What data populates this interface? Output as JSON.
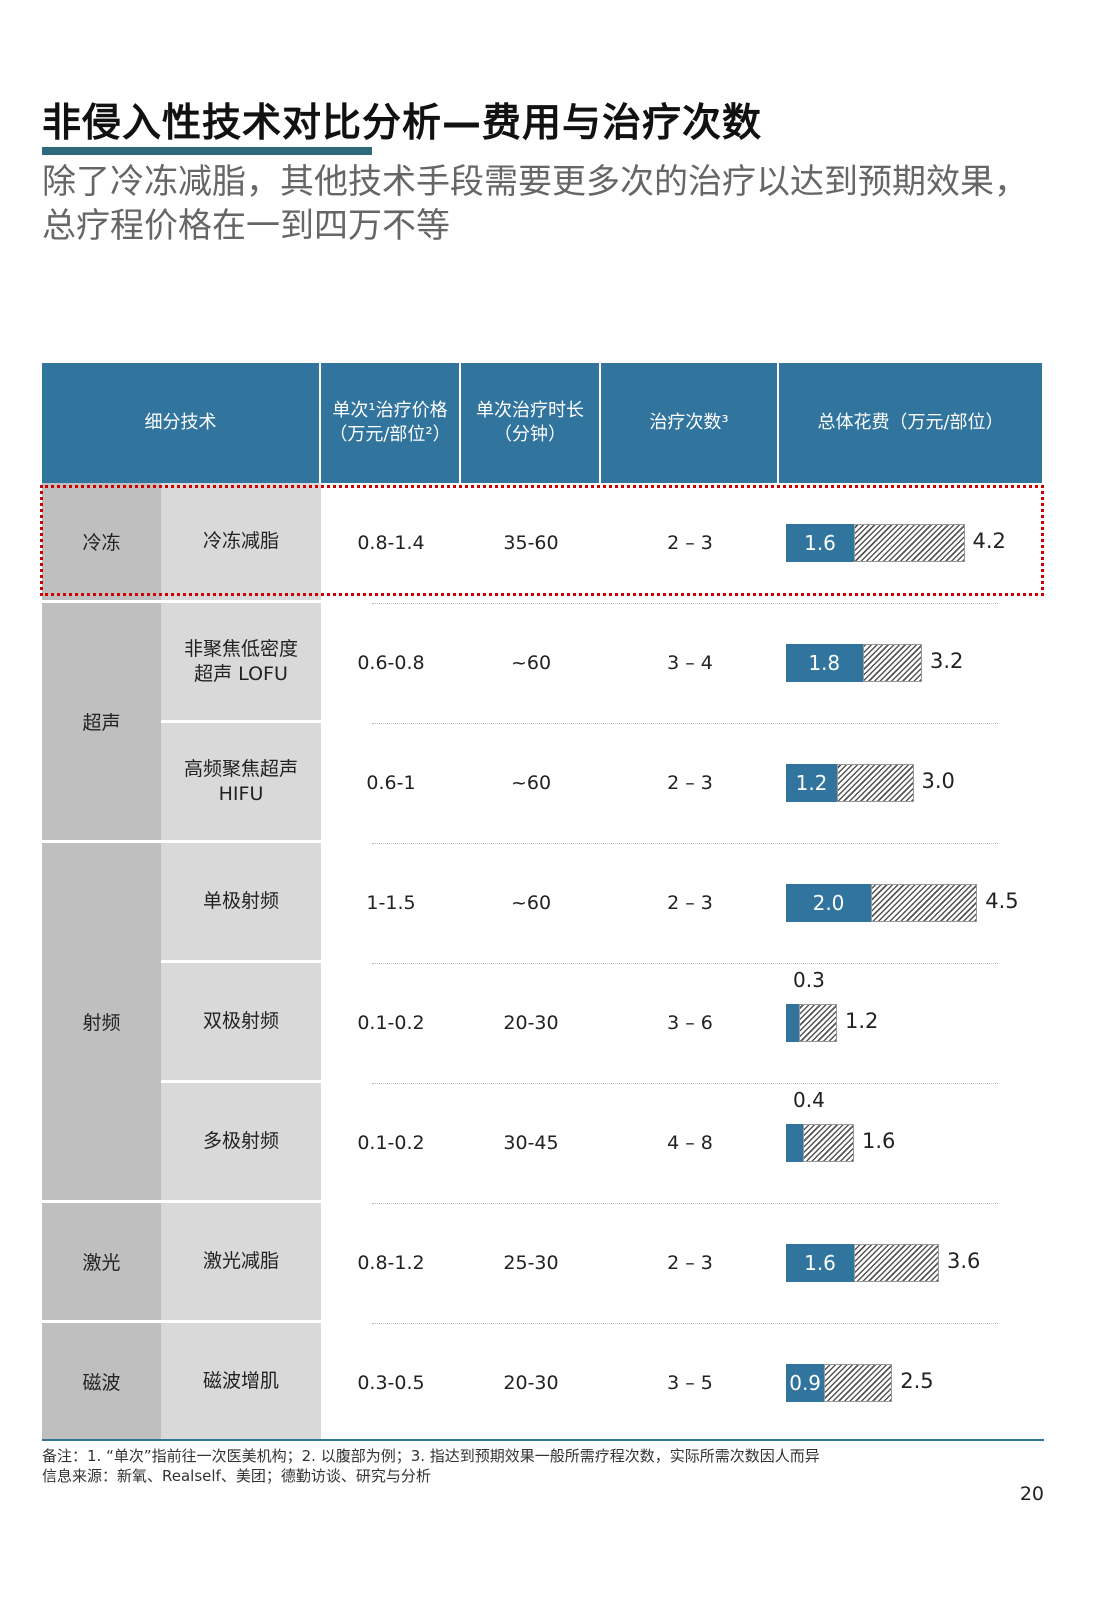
{
  "title": "非侵入性技术对比分析—费用与治疗次数",
  "subtitle": "除了冷冻减脂，其他技术手段需要更多次的治疗以达到预期效果，总疗程价格在一到四万不等",
  "table": {
    "headers": [
      "细分技术",
      "单次¹治疗价格（万元/部位²）",
      "单次治疗时长（分钟）",
      "治疗次数³",
      "总体花费（万元/部位）"
    ],
    "categories": [
      {
        "name": "冷冻",
        "rows": 1
      },
      {
        "name": "超声",
        "rows": 2
      },
      {
        "name": "射频",
        "rows": 3
      },
      {
        "name": "激光",
        "rows": 1
      },
      {
        "name": "磁波",
        "rows": 1
      }
    ],
    "rows": [
      {
        "tech": "冷冻减脂",
        "price": "0.8-1.4",
        "duration": "35-60",
        "sessions": "2 – 3",
        "single": 1.6,
        "total": 4.2,
        "single_label": "1.6",
        "total_label": "4.2",
        "highlighted": true
      },
      {
        "tech": "非聚焦低密度超声 LOFU",
        "price": "0.6-0.8",
        "duration": "~60",
        "sessions": "3 – 4",
        "single": 1.8,
        "total": 3.2,
        "single_label": "1.8",
        "total_label": "3.2"
      },
      {
        "tech": "高频聚焦超声 HIFU",
        "price": "0.6-1",
        "duration": "~60",
        "sessions": "2 – 3",
        "single": 1.2,
        "total": 3.0,
        "single_label": "1.2",
        "total_label": "3.0"
      },
      {
        "tech": "单极射频",
        "price": "1-1.5",
        "duration": "~60",
        "sessions": "2 – 3",
        "single": 2.0,
        "total": 4.5,
        "single_label": "2.0",
        "total_label": "4.5"
      },
      {
        "tech": "双极射频",
        "price": "0.1-0.2",
        "duration": "20-30",
        "sessions": "3 – 6",
        "single": 0.3,
        "total": 1.2,
        "single_label": "0.3",
        "total_label": "1.2"
      },
      {
        "tech": "多极射频",
        "price": "0.1-0.2",
        "duration": "30-45",
        "sessions": "4 – 8",
        "single": 0.4,
        "total": 1.6,
        "single_label": "0.4",
        "total_label": "1.6"
      },
      {
        "tech": "激光减脂",
        "price": "0.8-1.2",
        "duration": "25-30",
        "sessions": "2 – 3",
        "single": 1.6,
        "total": 3.6,
        "single_label": "1.6",
        "total_label": "3.6"
      },
      {
        "tech": "磁波增肌",
        "price": "0.3-0.5",
        "duration": "20-30",
        "sessions": "3 – 5",
        "single": 0.9,
        "total": 2.5,
        "single_label": "0.9",
        "total_label": "2.5"
      }
    ]
  },
  "colors": {
    "header": "#31749e",
    "bar": "#31749e",
    "highlight": "#cc0000"
  },
  "notes": "备注：1. “单次”指前往一次医美机构；2. 以腹部为例；3. 指达到预期效果一般所需疗程次数，实际所需次数因人而异",
  "source": "信息来源：新氧、Realself、美团；德勤访谈、研究与分析",
  "page_number": "20"
}
